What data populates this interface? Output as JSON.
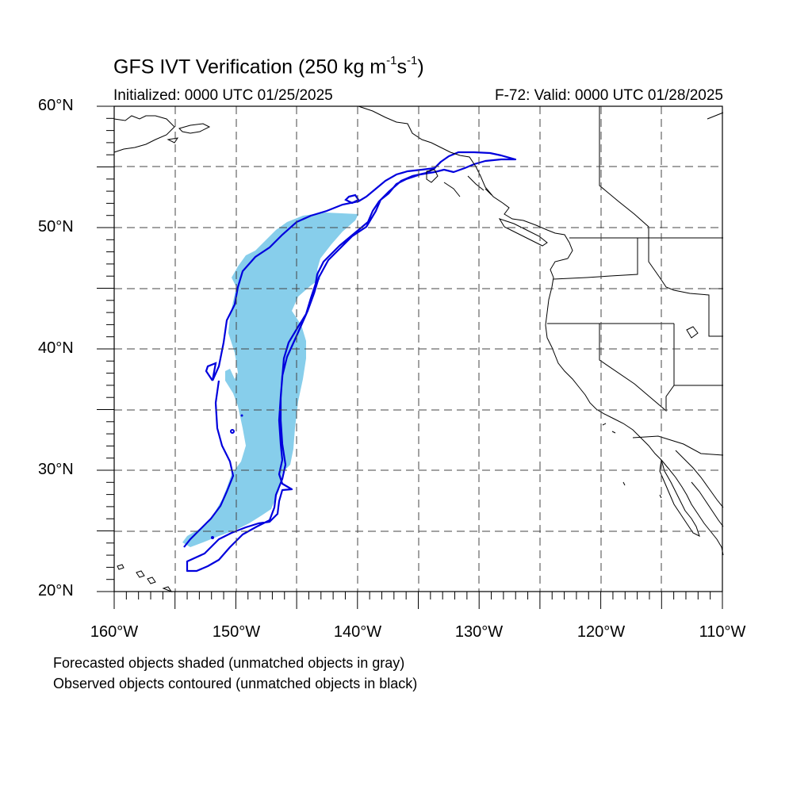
{
  "title": {
    "prefix": "GFS IVT Verification (250 kg m",
    "exp1": "-1",
    "mid": "s",
    "exp2": "-1",
    "suffix": ")"
  },
  "initialized": "Initialized: 0000 UTC 01/25/2025",
  "valid": "F-72: Valid: 0000 UTC 01/28/2025",
  "lat_labels": [
    "60°N",
    "50°N",
    "40°N",
    "30°N",
    "20°N"
  ],
  "lon_labels": [
    "160°W",
    "150°W",
    "140°W",
    "130°W",
    "120°W",
    "110°W"
  ],
  "footnote_1": "Forecasted objects shaded (unmatched objects in gray)",
  "footnote_2": "Observed objects contoured (unmatched objects in black)",
  "colors": {
    "forecast_fill": "#87ceeb",
    "observed_contour": "#0000dd",
    "coastline": "#000000",
    "grid": "#444444"
  },
  "map_extent": {
    "lon_min": -160,
    "lon_max": -110,
    "lat_min": 20,
    "lat_max": 60
  }
}
